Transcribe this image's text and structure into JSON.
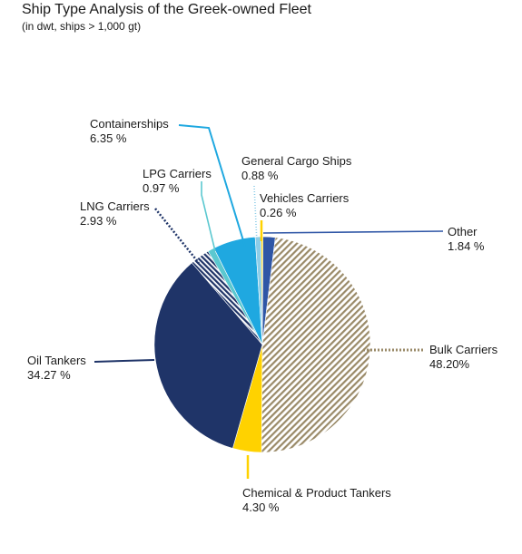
{
  "chart_data": {
    "type": "pie",
    "title": "Ship Type Analysis of the Greek-owned Fleet",
    "subtitle": "(in dwt, ships > 1,000 gt)",
    "slices": [
      {
        "key": "other",
        "label": "Other",
        "value_label": "1.84 %",
        "value": 1.84,
        "color": "#2f56a6"
      },
      {
        "key": "bulk",
        "label": "Bulk Carriers",
        "value_label": "48.20%",
        "value": 48.2,
        "color": "#9a8a68"
      },
      {
        "key": "chemical",
        "label": "Chemical & Product Tankers",
        "value_label": "4.30 %",
        "value": 4.3,
        "color": "#ffd200"
      },
      {
        "key": "oil",
        "label": "Oil Tankers",
        "value_label": "34.27 %",
        "value": 34.27,
        "color": "#1f3468"
      },
      {
        "key": "lng",
        "label": "LNG Carriers",
        "value_label": "2.93 %",
        "value": 2.93,
        "color": "#1f3468"
      },
      {
        "key": "lpg",
        "label": "LPG Carriers",
        "value_label": "0.97 %",
        "value": 0.97,
        "color": "#5bc8d0"
      },
      {
        "key": "container",
        "label": "Containerships",
        "value_label": "6.35 %",
        "value": 6.35,
        "color": "#1fa8e0"
      },
      {
        "key": "general",
        "label": "General Cargo Ships",
        "value_label": "0.88 %",
        "value": 0.88,
        "color": "#8ccde8"
      },
      {
        "key": "vehicles",
        "label": "Vehicles Carriers",
        "value_label": "0.26 %",
        "value": 0.26,
        "color": "#ffd200"
      }
    ]
  }
}
